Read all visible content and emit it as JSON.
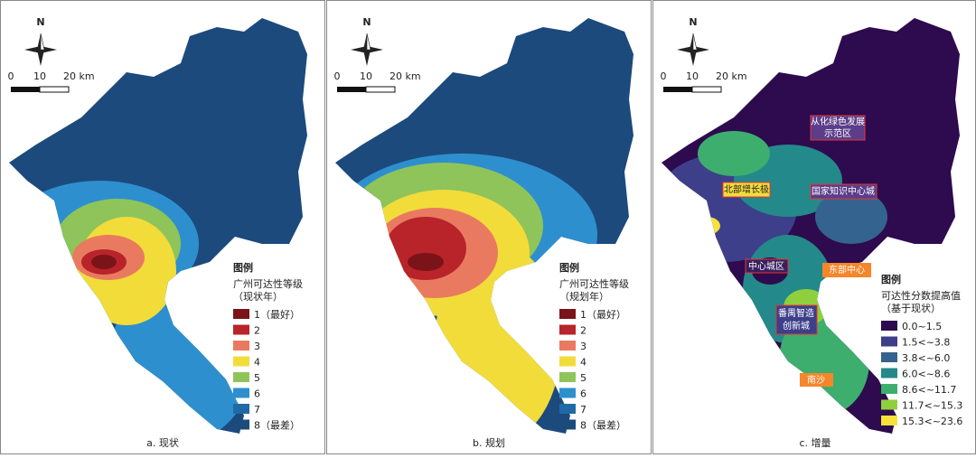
{
  "panels": [
    {
      "caption": "a. 现状",
      "legend": {
        "title": "图例",
        "subtitle": "广州可达性等级",
        "note": "（现状年）",
        "items": [
          {
            "label": "1（最好）",
            "color": "#7a1418"
          },
          {
            "label": "2",
            "color": "#b8242a"
          },
          {
            "label": "3",
            "color": "#ea7a5f"
          },
          {
            "label": "4",
            "color": "#f2dc3a"
          },
          {
            "label": "5",
            "color": "#8fc45a"
          },
          {
            "label": "6",
            "color": "#2e8fcf"
          },
          {
            "label": "7",
            "color": "#1f6aa6"
          },
          {
            "label": "8（最差）",
            "color": "#1c4a7c"
          }
        ]
      }
    },
    {
      "caption": "b. 规划",
      "legend": {
        "title": "图例",
        "subtitle": "广州可达性等级",
        "note": "（规划年）",
        "items": [
          {
            "label": "1（最好）",
            "color": "#7a1418"
          },
          {
            "label": "2",
            "color": "#b8242a"
          },
          {
            "label": "3",
            "color": "#ea7a5f"
          },
          {
            "label": "4",
            "color": "#f2dc3a"
          },
          {
            "label": "5",
            "color": "#8fc45a"
          },
          {
            "label": "6",
            "color": "#2e8fcf"
          },
          {
            "label": "7",
            "color": "#1f6aa6"
          },
          {
            "label": "8（最差）",
            "color": "#1c4a7c"
          }
        ]
      }
    },
    {
      "caption": "c. 增量",
      "legend": {
        "title": "图例",
        "subtitle": "可达性分数提高值",
        "note": "（基于现状）",
        "items": [
          {
            "label": "0.0~1.5",
            "color": "#2d0b4e"
          },
          {
            "label": "1.5<~3.8",
            "color": "#3e3f8a"
          },
          {
            "label": "3.8<~6.0",
            "color": "#35638f"
          },
          {
            "label": "6.0<~8.6",
            "color": "#24898a"
          },
          {
            "label": "8.6<~11.7",
            "color": "#3eae6e"
          },
          {
            "label": "11.7<~15.3",
            "color": "#8fcf3e"
          },
          {
            "label": "15.3<~23.6",
            "color": "#f7e23a"
          }
        ]
      },
      "annotations": [
        "从化绿色发展",
        "示范区",
        "北部增长极",
        "国家知识中心城",
        "中心城区",
        "东部中心",
        "番禺智造",
        "创新城",
        "南沙"
      ]
    }
  ],
  "north": "N",
  "scale": [
    "0",
    "10",
    "20 km"
  ]
}
